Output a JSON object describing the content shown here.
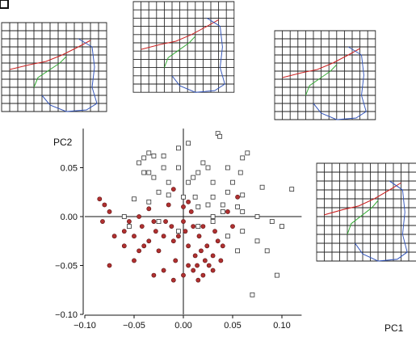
{
  "chart_data": {
    "type": "scatter",
    "xlabel": "PC1",
    "ylabel": "PC2",
    "xlim": [
      -0.1,
      0.12
    ],
    "ylim": [
      -0.1,
      0.1
    ],
    "xticks": [
      -0.1,
      -0.05,
      0.0,
      0.05,
      0.1
    ],
    "yticks": [
      -0.1,
      -0.05,
      0.0,
      0.05
    ],
    "tick_labels_x": [
      "−0.10",
      "−0.05",
      "0.00",
      "0.05",
      "0.10"
    ],
    "tick_labels_y": [
      "−0.10",
      "−0.05",
      "0.00",
      "0.05"
    ],
    "grid": false,
    "colors": {
      "group_open": "#ffffff",
      "group_filled": "#b03030",
      "outline": "#333333",
      "grid_red": "#cc2222",
      "grid_green": "#33aa33",
      "grid_blue": "#3355bb"
    },
    "extreme_markers": [
      {
        "x": -0.07,
        "y": 0.07
      },
      {
        "x": 0.0,
        "y": 0.09
      },
      {
        "x": 0.07,
        "y": 0.07
      },
      {
        "x": 0.105,
        "y": 0.0
      }
    ],
    "series": [
      {
        "marker": "open-square",
        "points": [
          [
            0.035,
            0.085
          ],
          [
            0.037,
            0.082
          ],
          [
            0.005,
            0.075
          ],
          [
            -0.04,
            0.06
          ],
          [
            -0.035,
            0.065
          ],
          [
            -0.03,
            0.062
          ],
          [
            -0.02,
            0.062
          ],
          [
            -0.045,
            0.055
          ],
          [
            -0.04,
            0.045
          ],
          [
            -0.035,
            0.045
          ],
          [
            -0.005,
            0.07
          ],
          [
            -0.03,
            0.04
          ],
          [
            -0.02,
            0.05
          ],
          [
            0.02,
            0.055
          ],
          [
            0.025,
            0.05
          ],
          [
            0.045,
            0.05
          ],
          [
            0.06,
            0.06
          ],
          [
            0.065,
            0.065
          ],
          [
            0.058,
            0.045
          ],
          [
            0.015,
            0.045
          ],
          [
            -0.005,
            0.05
          ],
          [
            0.01,
            0.04
          ],
          [
            -0.015,
            0.035
          ],
          [
            0.005,
            0.035
          ],
          [
            0.03,
            0.035
          ],
          [
            0.08,
            0.03
          ],
          [
            0.11,
            0.028
          ],
          [
            -0.025,
            0.025
          ],
          [
            -0.015,
            0.022
          ],
          [
            0.0,
            0.02
          ],
          [
            0.012,
            0.02
          ],
          [
            0.03,
            0.02
          ],
          [
            0.045,
            0.025
          ],
          [
            0.06,
            0.022
          ],
          [
            -0.05,
            0.018
          ],
          [
            -0.035,
            0.015
          ],
          [
            0.025,
            0.012
          ],
          [
            0.04,
            0.012
          ],
          [
            0.055,
            0.01
          ],
          [
            -0.06,
            0.0
          ],
          [
            0.04,
            0.005
          ],
          [
            0.06,
            0.005
          ],
          [
            0.075,
            0.0
          ],
          [
            0.09,
            -0.005
          ],
          [
            0.1,
            -0.01
          ],
          [
            -0.055,
            -0.01
          ],
          [
            0.03,
            -0.005
          ],
          [
            0.045,
            -0.02
          ],
          [
            0.06,
            -0.015
          ],
          [
            0.075,
            -0.025
          ],
          [
            -0.005,
            -0.015
          ],
          [
            0.015,
            -0.01
          ],
          [
            0.07,
            -0.08
          ],
          [
            0.095,
            -0.06
          ],
          [
            0.085,
            -0.035
          ],
          [
            0.055,
            -0.035
          ],
          [
            -0.025,
            -0.005
          ],
          [
            0.015,
            0.01
          ],
          [
            0.03,
            0.0
          ],
          [
            0.05,
            0.035
          ]
        ]
      },
      {
        "marker": "filled-circle",
        "points": [
          [
            -0.085,
            0.018
          ],
          [
            -0.08,
            0.012
          ],
          [
            -0.075,
            0.005
          ],
          [
            -0.082,
            -0.005
          ],
          [
            -0.07,
            -0.02
          ],
          [
            -0.06,
            -0.015
          ],
          [
            -0.055,
            -0.005
          ],
          [
            -0.05,
            -0.02
          ],
          [
            -0.045,
            0.0
          ],
          [
            -0.04,
            -0.03
          ],
          [
            -0.042,
            -0.01
          ],
          [
            -0.035,
            -0.025
          ],
          [
            -0.03,
            -0.005
          ],
          [
            -0.028,
            -0.015
          ],
          [
            -0.025,
            -0.035
          ],
          [
            -0.02,
            -0.02
          ],
          [
            -0.018,
            -0.005
          ],
          [
            -0.015,
            0.012
          ],
          [
            -0.012,
            -0.01
          ],
          [
            -0.01,
            -0.025
          ],
          [
            -0.008,
            -0.045
          ],
          [
            -0.005,
            -0.02
          ],
          [
            0.0,
            -0.005
          ],
          [
            0.002,
            -0.015
          ],
          [
            0.005,
            -0.03
          ],
          [
            0.008,
            0.005
          ],
          [
            0.01,
            -0.01
          ],
          [
            0.012,
            -0.04
          ],
          [
            0.014,
            -0.05
          ],
          [
            0.016,
            -0.02
          ],
          [
            0.018,
            -0.035
          ],
          [
            0.02,
            -0.01
          ],
          [
            0.022,
            -0.045
          ],
          [
            0.024,
            -0.03
          ],
          [
            0.026,
            -0.05
          ],
          [
            0.03,
            -0.04
          ],
          [
            0.032,
            -0.015
          ],
          [
            0.035,
            -0.025
          ],
          [
            0.038,
            -0.045
          ],
          [
            0.04,
            -0.03
          ],
          [
            -0.02,
            -0.055
          ],
          [
            -0.03,
            -0.06
          ],
          [
            -0.01,
            -0.065
          ],
          [
            0.0,
            -0.06
          ],
          [
            0.005,
            -0.05
          ],
          [
            0.01,
            -0.055
          ],
          [
            0.02,
            -0.06
          ],
          [
            0.03,
            -0.055
          ],
          [
            -0.075,
            -0.05
          ],
          [
            -0.05,
            -0.045
          ],
          [
            -0.045,
            -0.035
          ],
          [
            0.055,
            0.02
          ],
          [
            0.05,
            -0.01
          ],
          [
            0.045,
            0.005
          ],
          [
            -0.01,
            0.028
          ],
          [
            0.0,
            0.01
          ],
          [
            0.005,
            0.015
          ],
          [
            -0.035,
            0.008
          ],
          [
            -0.06,
            -0.03
          ],
          [
            0.015,
            -0.065
          ]
        ]
      }
    ]
  }
}
